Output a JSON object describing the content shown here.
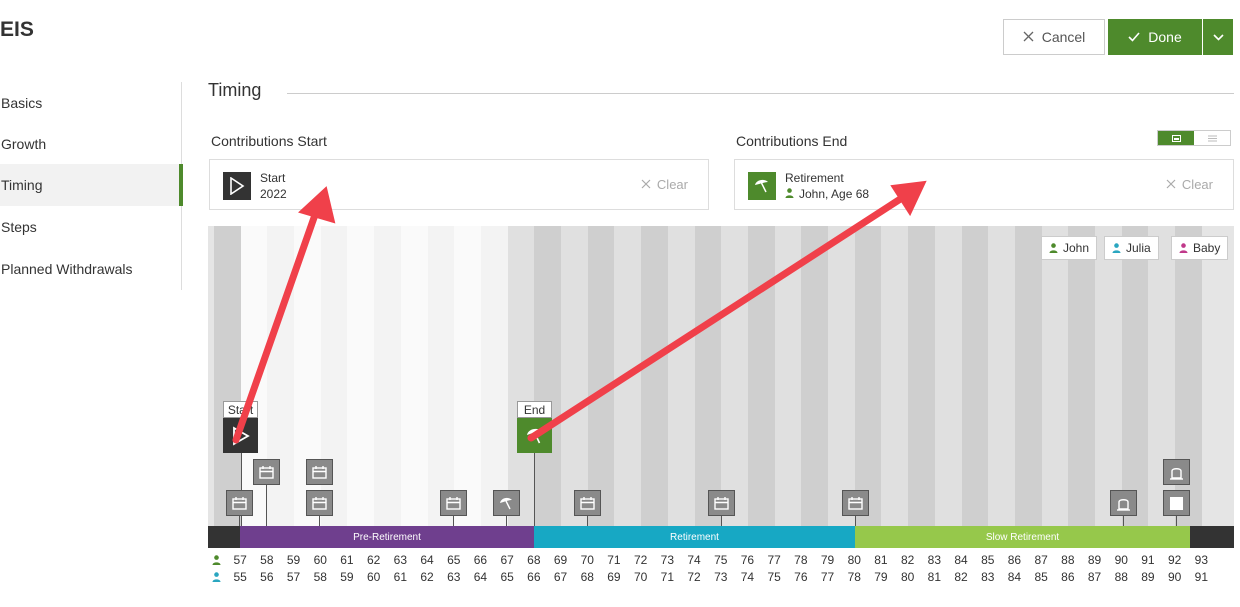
{
  "app": {
    "title": "EIS"
  },
  "header": {
    "cancel_label": "Cancel",
    "done_label": "Done"
  },
  "sidebar": {
    "items": [
      {
        "label": "Basics",
        "active": false
      },
      {
        "label": "Growth",
        "active": false
      },
      {
        "label": "Timing",
        "active": true
      },
      {
        "label": "Steps",
        "active": false
      },
      {
        "label": "Planned Withdrawals",
        "active": false
      }
    ]
  },
  "section": {
    "title": "Timing"
  },
  "contributions_start": {
    "label": "Contributions Start",
    "title": "Start",
    "value": "2022",
    "icon": "play-icon",
    "clear_label": "Clear"
  },
  "contributions_end": {
    "label": "Contributions End",
    "title": "Retirement",
    "value": "John, Age 68",
    "icon": "umbrella-icon",
    "clear_label": "Clear"
  },
  "legend": [
    {
      "label": "John",
      "color": "#4e8a2c"
    },
    {
      "label": "Julia",
      "color": "#2aa6c0"
    },
    {
      "label": "Baby",
      "color": "#c0398a"
    }
  ],
  "markers": {
    "start_label": "Start",
    "end_label": "End"
  },
  "phases": [
    {
      "label": "Pre-Retirement",
      "color": "#6f3f8e"
    },
    {
      "label": "Retirement",
      "color": "#17a8c4"
    },
    {
      "label": "Slow Retirement",
      "color": "#96c84b"
    }
  ],
  "ages": {
    "john": [
      57,
      58,
      59,
      60,
      61,
      62,
      63,
      64,
      65,
      66,
      67,
      68,
      69,
      70,
      71,
      72,
      73,
      74,
      75,
      76,
      77,
      78,
      79,
      80,
      81,
      82,
      83,
      84,
      85,
      86,
      87,
      88,
      89,
      90,
      91,
      92,
      93
    ],
    "julia": [
      55,
      56,
      57,
      58,
      59,
      60,
      61,
      62,
      63,
      64,
      65,
      66,
      67,
      68,
      69,
      70,
      71,
      72,
      73,
      74,
      75,
      76,
      77,
      78,
      79,
      80,
      81,
      82,
      83,
      84,
      85,
      86,
      87,
      88,
      89,
      90,
      91
    ]
  },
  "colors": {
    "accent": "#4e8a2c",
    "john": "#4e8a2c",
    "julia": "#2aa6c0",
    "baby": "#c0398a",
    "arrow": "#f0404a"
  }
}
